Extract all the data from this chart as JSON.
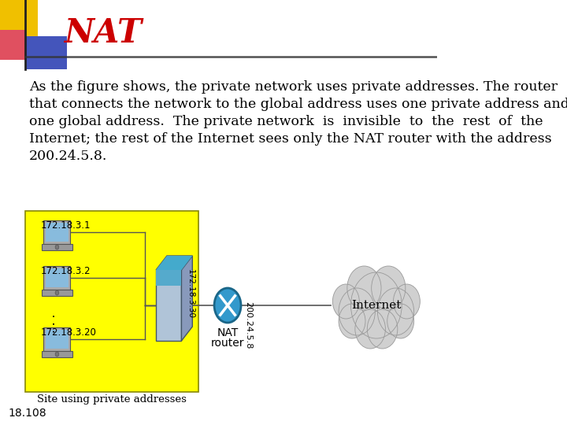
{
  "title": "NAT",
  "title_color": "#cc0000",
  "bg_color": "#ffffff",
  "body_lines": [
    "As the figure shows, the private network uses private addresses. The router",
    "that connects the network to the global address uses one private address and",
    "one global address.  The private network  is  invisible  to  the  rest  of  the",
    "Internet; the rest of the Internet sees only the NAT router with the address",
    "200.24.5.8."
  ],
  "body_fontsize": 12.5,
  "footer_text": "18.108",
  "footer_fontsize": 10,
  "laptop_labels": [
    "172.18.3.1",
    "172.18.3.2",
    "172.18.3.20"
  ],
  "router_label": "172.18.3.30",
  "nat_label1": "NAT",
  "nat_label2": "router",
  "global_addr": "200.24.5.8",
  "internet_label": "Internet",
  "site_label": "Site using private addresses",
  "yellow_color": "#ffff00",
  "cloud_color": "#d0d0d0",
  "router_front": "#b0c4d8",
  "router_top": "#ddeeff",
  "router_right": "#8899bb",
  "nat_circle_color": "#3399cc",
  "nat_circle_dark": "#1a6688"
}
